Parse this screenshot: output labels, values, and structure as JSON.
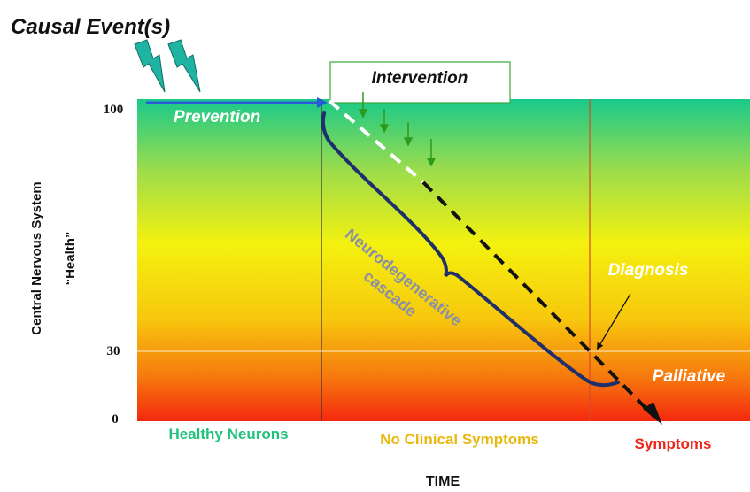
{
  "title": "Causal Event(s)",
  "intervention_label": "Intervention",
  "prevention_label": "Prevention",
  "cascade_label": [
    "Neurodegenerative",
    "cascade"
  ],
  "diagnosis_label": "Diagnosis",
  "palliative_label": "Palliative",
  "y_axis": {
    "label_line1": "Central Nervous System",
    "label_line2": "“Health”",
    "ticks": [
      "100",
      "30",
      "0"
    ]
  },
  "x_axis": {
    "label": "TIME"
  },
  "phases": [
    "Healthy Neurons",
    "No Clinical Symptoms",
    "Symptoms"
  ],
  "colors": {
    "gradient_top": "#19c98a",
    "gradient_mid": "#f4f10f",
    "gradient_bottom": "#f4280e",
    "phase_healthy": "#22c27a",
    "phase_no_symptoms": "#e8b80e",
    "phase_symptoms": "#ee2418",
    "decline_curve": "#1f2f6a",
    "prevention_arrow": "#2a5bd7",
    "bolt": "#1fb3a2",
    "intervention_arrows": "#2f9a1c"
  },
  "icons": [
    "lightning-bolt-icon",
    "lightning-bolt-icon",
    "down-arrow-icon"
  ]
}
